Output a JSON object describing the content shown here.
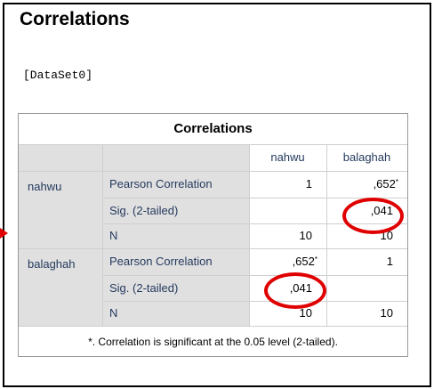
{
  "output": {
    "heading": "Correlations",
    "dataset_label": "[DataSet0]"
  },
  "table": {
    "title": "Correlations",
    "columns": [
      "nahwu",
      "balaghah"
    ],
    "rows": [
      {
        "variable": "nahwu",
        "stats": [
          {
            "label": "Pearson Correlation",
            "nahwu": "1",
            "balaghah": ",652",
            "balaghah_mark": "*"
          },
          {
            "label": "Sig. (2-tailed)",
            "nahwu": "",
            "balaghah": ",041"
          },
          {
            "label": "N",
            "nahwu": "10",
            "balaghah": "10"
          }
        ]
      },
      {
        "variable": "balaghah",
        "stats": [
          {
            "label": "Pearson Correlation",
            "nahwu": ",652",
            "nahwu_mark": "*",
            "balaghah": "1"
          },
          {
            "label": "Sig. (2-tailed)",
            "nahwu": ",041",
            "balaghah": ""
          },
          {
            "label": "N",
            "nahwu": "10",
            "balaghah": "10"
          }
        ]
      }
    ],
    "footnote": "*. Correlation is significant at the 0.05 level (2-tailed)."
  },
  "annotations": {
    "highlight_color": "#e00000",
    "arrow_icon": "right-arrow-icon"
  }
}
